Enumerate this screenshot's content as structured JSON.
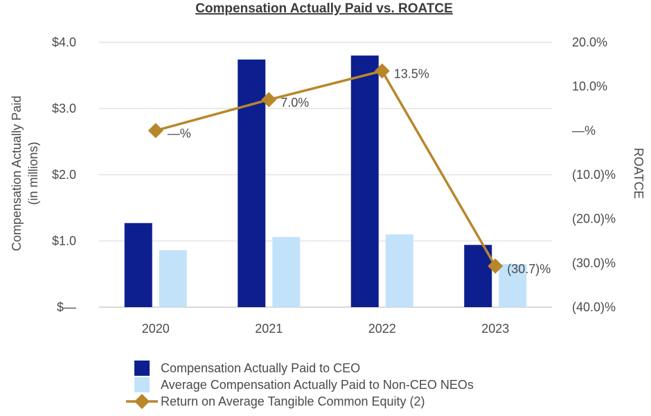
{
  "chart_data": {
    "type": "bar",
    "title": "Compensation Actually Paid vs. ROATCE",
    "categories": [
      "2020",
      "2021",
      "2022",
      "2023"
    ],
    "ylabel": [
      "Compensation Actually Paid",
      "(in millions)"
    ],
    "y2label": "ROATCE",
    "ylim": [
      0,
      4
    ],
    "y2lim": [
      -40,
      20
    ],
    "yticks": [
      0,
      1,
      2,
      3,
      4
    ],
    "ytick_labels": [
      "$—",
      "$1.0",
      "$2.0",
      "$3.0",
      "$4.0"
    ],
    "y2ticks": [
      20,
      10,
      0,
      -10,
      -20,
      -30,
      -40
    ],
    "y2tick_labels": [
      "20.0%",
      "10.0%",
      "—%",
      "(10.0)%",
      "(20.0)%",
      "(30.0)%",
      "(40.0)%"
    ],
    "grid": true,
    "legend_position": "bottom",
    "series": [
      {
        "name": "Compensation Actually Paid to CEO",
        "kind": "bar",
        "axis": "left",
        "color": "#0d1f8f",
        "values": [
          1.27,
          3.74,
          3.8,
          0.94
        ]
      },
      {
        "name": "Average Compensation Actually Paid to Non-CEO NEOs",
        "kind": "bar",
        "axis": "left",
        "color": "#c2e2fa",
        "values": [
          0.86,
          1.06,
          1.1,
          0.65
        ]
      },
      {
        "name": "Return on Average Tangible Common Equity (2)",
        "kind": "line",
        "axis": "right",
        "color": "#b8862b",
        "values": [
          0.0,
          7.0,
          13.5,
          -30.7
        ],
        "labels": [
          "—%",
          "7.0%",
          "13.5%",
          "(30.7)%"
        ]
      }
    ]
  }
}
